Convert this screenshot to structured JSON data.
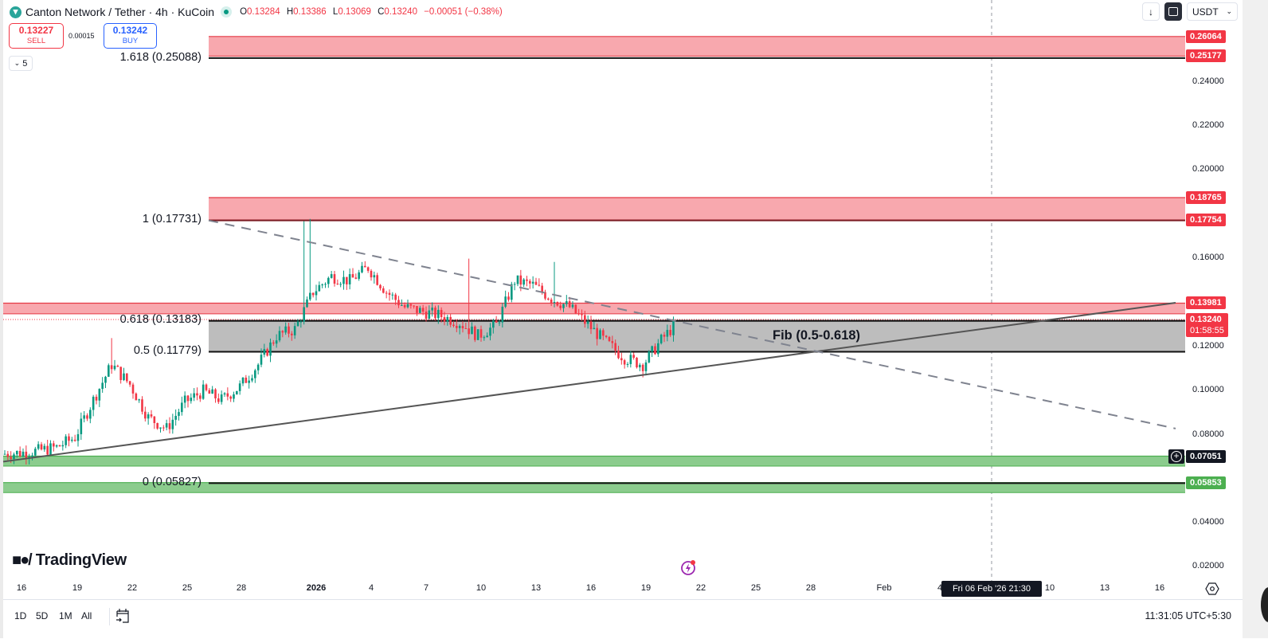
{
  "header": {
    "symbol_title": "Canton Network / Tether · 4h · KuCoin",
    "ohlc": {
      "o_label": "O",
      "o_value": "0.13284",
      "h_label": "H",
      "h_value": "0.13386",
      "l_label": "L",
      "l_value": "0.13069",
      "c_label": "C",
      "c_value": "0.13240",
      "change": "−0.00051 (−0.38%)"
    }
  },
  "trade": {
    "sell_price": "0.13227",
    "sell_label": "SELL",
    "spread": "0.00015",
    "buy_price": "0.13242",
    "buy_label": "BUY"
  },
  "indicators_toggle": {
    "count": "5"
  },
  "toolbar": {
    "currency": "USDT"
  },
  "colors": {
    "up": "#089981",
    "down": "#f23645",
    "resistance_zone": "#f8a8ae",
    "support_zone": "#8bcc8d",
    "fib_zone": "#bdbdbd",
    "trendline": "#555555",
    "dashed_trendline": "#7f838f"
  },
  "fib_labels": [
    {
      "text": "1.618 (0.25088)",
      "price": 0.25088
    },
    {
      "text": "1 (0.17731)",
      "price": 0.17731
    },
    {
      "text": "0.618 (0.13183)",
      "price": 0.13183
    },
    {
      "text": "0.5 (0.11779)",
      "price": 0.11779
    },
    {
      "text": "0 (0.05827)",
      "price": 0.05827
    }
  ],
  "fib_zone_label": "Fib (0.5-0.618)",
  "price_tags": [
    {
      "text": "0.26064",
      "kind": "red"
    },
    {
      "text": "0.25177",
      "kind": "red"
    },
    {
      "text": "0.18765",
      "kind": "red"
    },
    {
      "text": "0.17754",
      "kind": "red"
    },
    {
      "text": "0.13981",
      "kind": "red"
    },
    {
      "text": "0.13240",
      "countdown": "01:58:55",
      "kind": "red"
    },
    {
      "text": "0.07051",
      "kind": "dark"
    },
    {
      "text": "0.05853",
      "kind": "green"
    }
  ],
  "y_axis_labels": [
    "0.24000",
    "0.22000",
    "0.20000",
    "0.16000",
    "0.12000",
    "0.10000",
    "0.08000",
    "0.04000",
    "0.02000"
  ],
  "x_axis_labels": [
    "16",
    "19",
    "22",
    "25",
    "28",
    "2026",
    "4",
    "7",
    "10",
    "13",
    "16",
    "19",
    "22",
    "25",
    "28",
    "Feb",
    "4",
    "10",
    "13",
    "16"
  ],
  "crosshair_time": "Fri 06 Feb '26   21:30",
  "brand": "TradingView",
  "ranges": [
    "1D",
    "5D",
    "1M",
    "All"
  ],
  "clock": "11:31:05 UTC+5:30",
  "chart_data": {
    "type": "candlestick",
    "title": "Canton Network / Tether · 4h · KuCoin",
    "xlabel": "",
    "ylabel": "USDT",
    "ylim": [
      0.0,
      0.27
    ],
    "x_ticks": [
      "Dec 16",
      "Dec 19",
      "Dec 22",
      "Dec 25",
      "Dec 28",
      "2026",
      "Jan 4",
      "Jan 7",
      "Jan 10",
      "Jan 13",
      "Jan 16",
      "Jan 19",
      "Jan 22",
      "Jan 25",
      "Jan 28",
      "Feb",
      "Feb 4",
      "Feb 10",
      "Feb 13",
      "Feb 16"
    ],
    "last_ohlc": {
      "open": 0.13284,
      "high": 0.13386,
      "low": 0.13069,
      "close": 0.1324
    },
    "daily_close_approx": {
      "x": [
        "Dec 15",
        "Dec 16",
        "Dec 17",
        "Dec 18",
        "Dec 19",
        "Dec 20",
        "Dec 21",
        "Dec 22",
        "Dec 23",
        "Dec 24",
        "Dec 25",
        "Dec 26",
        "Dec 27",
        "Dec 28",
        "Dec 29",
        "Dec 30",
        "Dec 31",
        "Jan 1",
        "Jan 2",
        "Jan 3",
        "Jan 4",
        "Jan 5",
        "Jan 6",
        "Jan 7",
        "Jan 8",
        "Jan 9",
        "Jan 10",
        "Jan 11",
        "Jan 12",
        "Jan 13",
        "Jan 14",
        "Jan 15",
        "Jan 16",
        "Jan 17",
        "Jan 18",
        "Jan 19",
        "Jan 20",
        "Jan 21"
      ],
      "close": [
        0.0715,
        0.072,
        0.073,
        0.0745,
        0.079,
        0.096,
        0.112,
        0.103,
        0.088,
        0.083,
        0.095,
        0.1,
        0.096,
        0.102,
        0.112,
        0.125,
        0.128,
        0.145,
        0.152,
        0.15,
        0.156,
        0.145,
        0.138,
        0.136,
        0.134,
        0.131,
        0.125,
        0.13,
        0.15,
        0.148,
        0.142,
        0.138,
        0.13,
        0.122,
        0.115,
        0.112,
        0.123,
        0.1324
      ]
    },
    "horizontal_zones": [
      {
        "name": "resistance",
        "from": 0.25177,
        "to": 0.26064
      },
      {
        "name": "resistance",
        "from": 0.17754,
        "to": 0.18765
      },
      {
        "name": "resistance",
        "from": 0.135,
        "to": 0.13981
      },
      {
        "name": "fib 0.5-0.618",
        "from": 0.11779,
        "to": 0.13183
      },
      {
        "name": "support",
        "from": 0.066,
        "to": 0.07051
      },
      {
        "name": "support",
        "from": 0.054,
        "to": 0.05853
      }
    ],
    "fib_levels": {
      "0": 0.05827,
      "0.5": 0.11779,
      "0.618": 0.13183,
      "1": 0.17731,
      "1.618": 0.25088
    },
    "trendlines": [
      {
        "name": "rising support",
        "style": "solid",
        "from": [
          "Dec 15",
          0.068
        ],
        "to": [
          "Feb 17",
          0.14
        ]
      },
      {
        "name": "falling resistance",
        "style": "dashed",
        "from": [
          "Dec 26",
          0.1773
        ],
        "to": [
          "Feb 17",
          0.083
        ]
      }
    ]
  }
}
